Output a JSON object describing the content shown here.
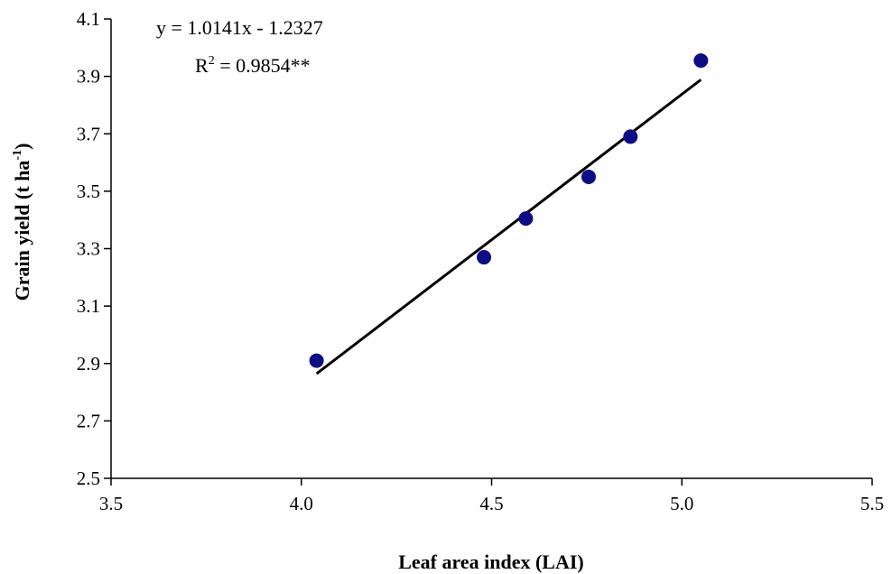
{
  "chart_data": {
    "type": "scatter",
    "title": "",
    "xlabel": "Leaf area index (LAI)",
    "ylabel": {
      "main": "Grain yield (t ha",
      "sup": "-1",
      "close": ")"
    },
    "xlim": [
      3.5,
      5.5
    ],
    "ylim": [
      2.5,
      4.1
    ],
    "xticks": [
      "3.5",
      "4.0",
      "4.5",
      "5.0",
      "5.5"
    ],
    "yticks": [
      "2.5",
      "2.7",
      "2.9",
      "3.1",
      "3.3",
      "3.5",
      "3.7",
      "3.9",
      "4.1"
    ],
    "grid": false,
    "marker_color": "#0d0d86",
    "line_color": "#000000",
    "series": [
      {
        "points": [
          {
            "x": 4.04,
            "y": 2.91
          },
          {
            "x": 4.48,
            "y": 3.27
          },
          {
            "x": 4.59,
            "y": 3.405
          },
          {
            "x": 4.755,
            "y": 3.55
          },
          {
            "x": 4.865,
            "y": 3.69
          },
          {
            "x": 5.05,
            "y": 3.955
          }
        ]
      }
    ],
    "trendline": {
      "slope": 1.0141,
      "intercept": -1.2327,
      "x_range": [
        4.04,
        5.05
      ]
    },
    "annotations": {
      "equation": "y = 1.0141x - 1.2327",
      "r2_prefix": "R",
      "r2_sup": "2",
      "r2_suffix": " = 0.9854**"
    }
  }
}
